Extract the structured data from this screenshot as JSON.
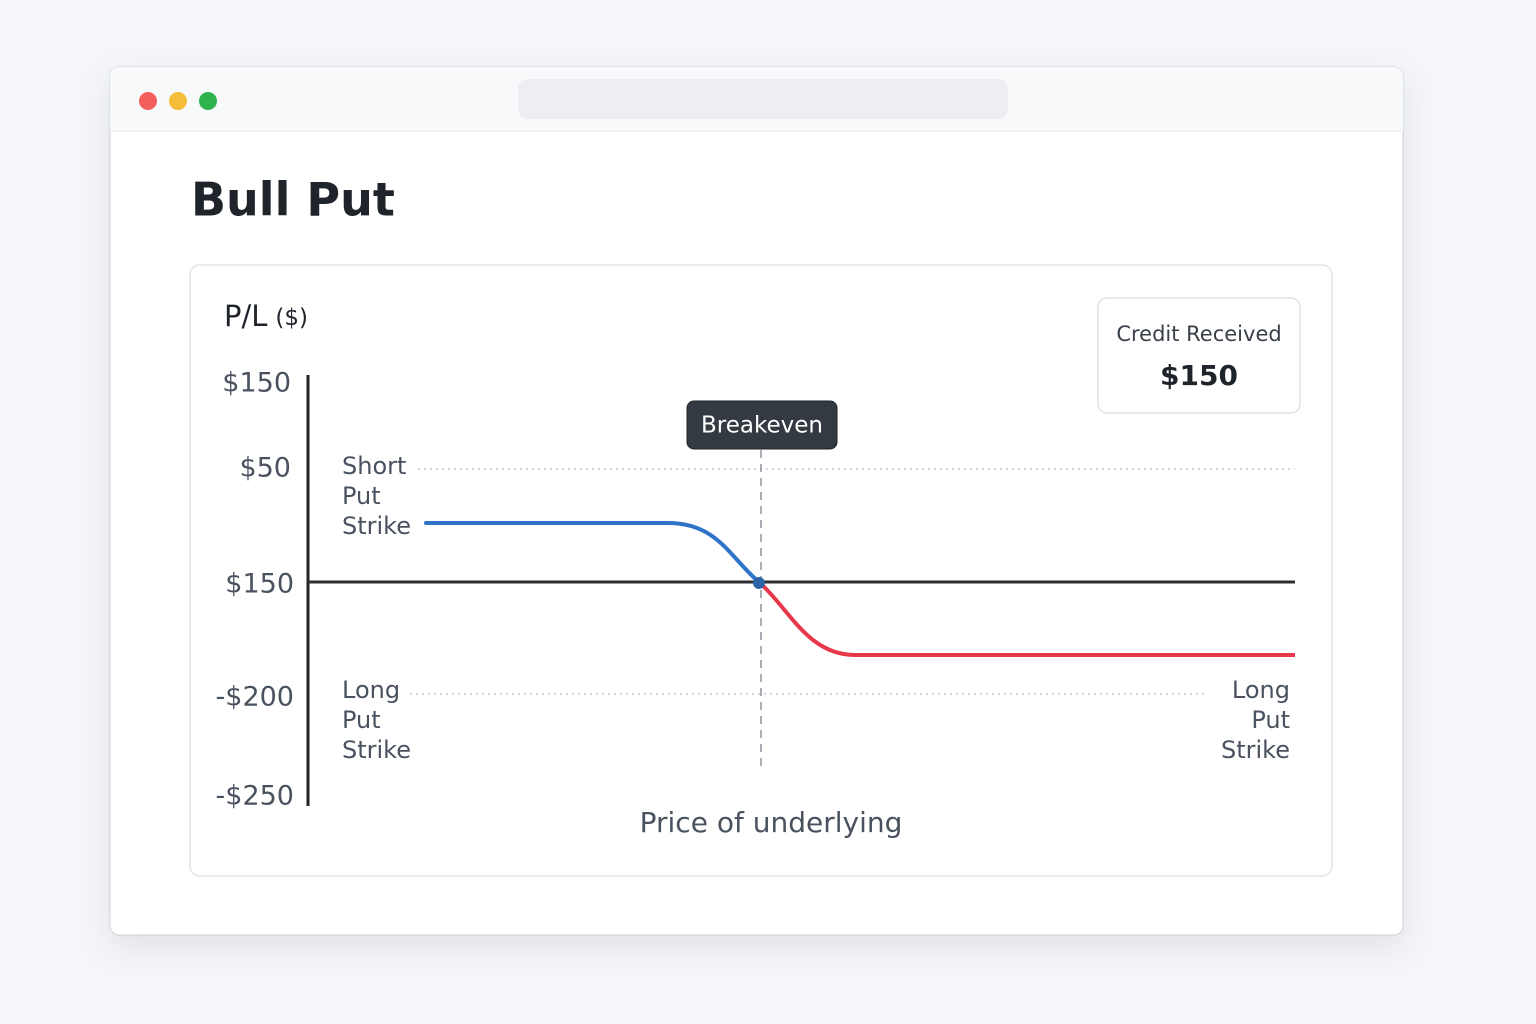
{
  "page": {
    "title": "Bull Put"
  },
  "chart_card": {
    "axis_title": "P/L",
    "axis_unit": "($)",
    "y_labels": [
      "$150",
      "$50",
      "$150",
      "-$200",
      "-$250"
    ],
    "x_axis_label": "Price of underlying",
    "breakeven": "Breakeven",
    "short_put_strike": [
      "Short",
      "Put",
      "Strike"
    ],
    "long_put_strike_left": [
      "Long",
      "Put",
      "Strike"
    ],
    "long_put_strike_right": [
      "Long",
      "Put",
      "Strike"
    ]
  },
  "credit": {
    "label": "Credit Received",
    "value": "$150"
  }
}
